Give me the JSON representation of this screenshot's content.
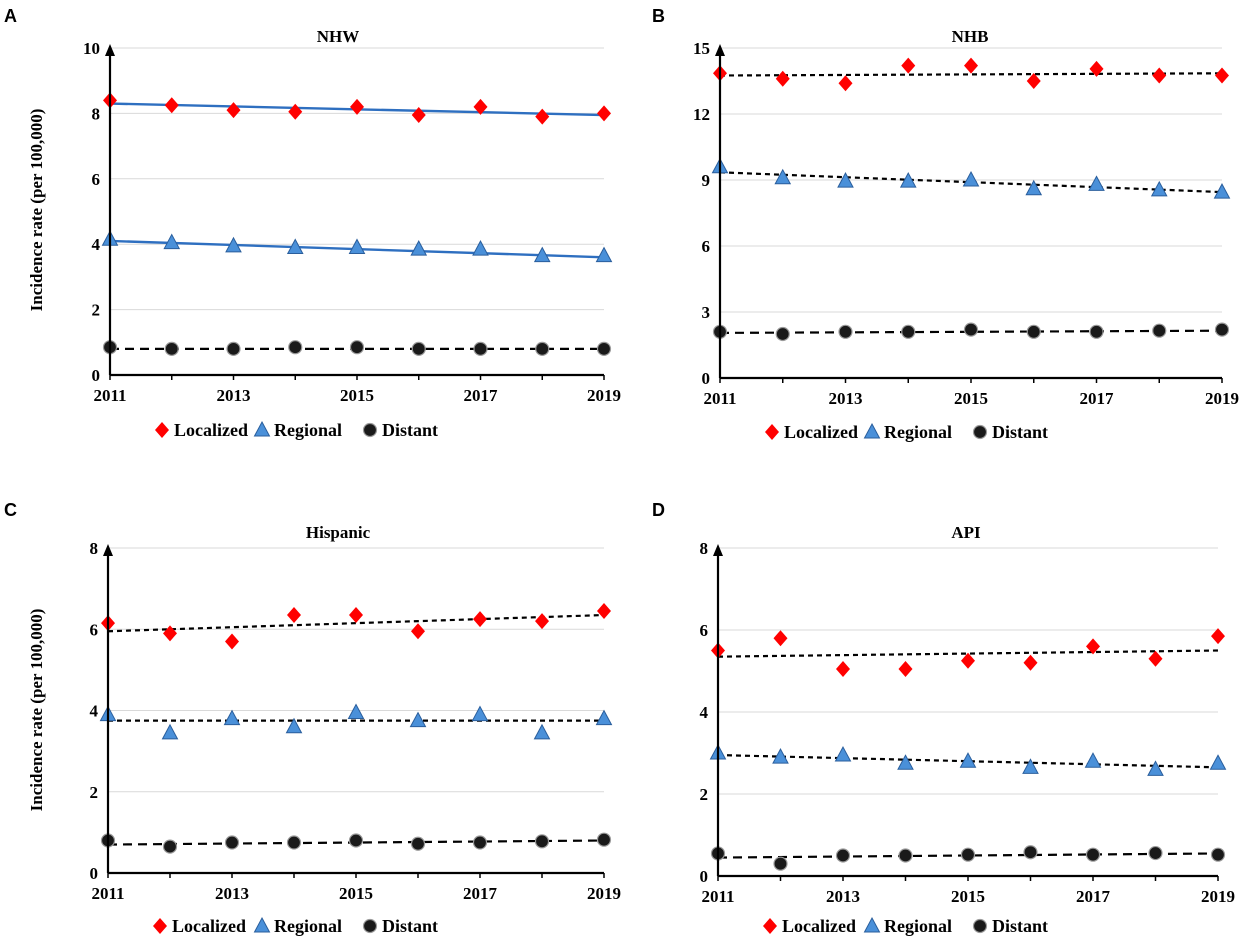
{
  "chart_data": [
    {
      "panel": "A",
      "type": "scatter",
      "title": "NHW",
      "ylabel": "Incidence rate (per 100,000)",
      "xlabel": "",
      "ylim": [
        0,
        10
      ],
      "yticks": [
        0,
        2,
        4,
        6,
        8,
        10
      ],
      "xlim": [
        2011,
        2019
      ],
      "xticks": [
        2011,
        2013,
        2015,
        2017,
        2019
      ],
      "x": [
        2011,
        2012,
        2013,
        2014,
        2015,
        2016,
        2017,
        2018,
        2019
      ],
      "series": [
        {
          "name": "Localized",
          "marker": "diamond",
          "color": "#ff0000",
          "values": [
            8.4,
            8.25,
            8.1,
            8.05,
            8.2,
            7.95,
            8.2,
            7.9,
            8.0
          ],
          "trend": {
            "style": "solid",
            "color": "#2e6fc0",
            "start": 8.3,
            "end": 7.95
          }
        },
        {
          "name": "Regional",
          "marker": "triangle",
          "color": "#4a90d9",
          "values": [
            4.15,
            4.05,
            3.95,
            3.9,
            3.9,
            3.85,
            3.85,
            3.65,
            3.65
          ],
          "trend": {
            "style": "solid",
            "color": "#2e6fc0",
            "start": 4.1,
            "end": 3.6
          }
        },
        {
          "name": "Distant",
          "marker": "circle",
          "color": "#1a1a1a",
          "values": [
            0.85,
            0.8,
            0.8,
            0.85,
            0.85,
            0.8,
            0.8,
            0.8,
            0.8
          ],
          "trend": {
            "style": "dashed",
            "color": "#000000",
            "start": 0.8,
            "end": 0.8
          }
        }
      ],
      "legend": [
        "Localized",
        "Regional",
        "Distant"
      ]
    },
    {
      "panel": "B",
      "type": "scatter",
      "title": "NHB",
      "ylabel": "",
      "xlabel": "",
      "ylim": [
        0,
        15
      ],
      "yticks": [
        0,
        3,
        6,
        9,
        12,
        15
      ],
      "xlim": [
        2011,
        2019
      ],
      "xticks": [
        2011,
        2013,
        2015,
        2017,
        2019
      ],
      "x": [
        2011,
        2012,
        2013,
        2014,
        2015,
        2016,
        2017,
        2018,
        2019
      ],
      "series": [
        {
          "name": "Localized",
          "marker": "diamond",
          "color": "#ff0000",
          "values": [
            13.85,
            13.6,
            13.4,
            14.2,
            14.2,
            13.5,
            14.05,
            13.75,
            13.75
          ],
          "trend": {
            "style": "dashed",
            "color": "#000000",
            "start": 13.75,
            "end": 13.85
          }
        },
        {
          "name": "Regional",
          "marker": "triangle",
          "color": "#4a90d9",
          "values": [
            9.6,
            9.1,
            8.95,
            8.95,
            9.0,
            8.6,
            8.8,
            8.55,
            8.45
          ],
          "trend": {
            "style": "dashed",
            "color": "#000000",
            "start": 9.35,
            "end": 8.45
          }
        },
        {
          "name": "Distant",
          "marker": "circle",
          "color": "#1a1a1a",
          "values": [
            2.1,
            2.0,
            2.1,
            2.1,
            2.2,
            2.1,
            2.1,
            2.15,
            2.2
          ],
          "trend": {
            "style": "dashed",
            "color": "#000000",
            "start": 2.05,
            "end": 2.15
          }
        }
      ],
      "legend": [
        "Localized",
        "Regional",
        "Distant"
      ]
    },
    {
      "panel": "C",
      "type": "scatter",
      "title": "Hispanic",
      "ylabel": "Incidence rate (per 100,000)",
      "xlabel": "",
      "ylim": [
        0,
        8
      ],
      "yticks": [
        0,
        2,
        4,
        6,
        8
      ],
      "xlim": [
        2011,
        2019
      ],
      "xticks": [
        2011,
        2013,
        2015,
        2017,
        2019
      ],
      "x": [
        2011,
        2012,
        2013,
        2014,
        2015,
        2016,
        2017,
        2018,
        2019
      ],
      "series": [
        {
          "name": "Localized",
          "marker": "diamond",
          "color": "#ff0000",
          "values": [
            6.15,
            5.9,
            5.7,
            6.35,
            6.35,
            5.95,
            6.25,
            6.2,
            6.45
          ],
          "trend": {
            "style": "dashed",
            "color": "#000000",
            "start": 5.95,
            "end": 6.35
          }
        },
        {
          "name": "Regional",
          "marker": "triangle",
          "color": "#4a90d9",
          "values": [
            3.9,
            3.45,
            3.8,
            3.6,
            3.95,
            3.75,
            3.9,
            3.45,
            3.8
          ],
          "trend": {
            "style": "dashed",
            "color": "#000000",
            "start": 3.75,
            "end": 3.75
          }
        },
        {
          "name": "Distant",
          "marker": "circle",
          "color": "#1a1a1a",
          "values": [
            0.8,
            0.65,
            0.75,
            0.75,
            0.8,
            0.72,
            0.75,
            0.78,
            0.82
          ],
          "trend": {
            "style": "dashed",
            "color": "#000000",
            "start": 0.7,
            "end": 0.8
          }
        }
      ],
      "legend": [
        "Localized",
        "Regional",
        "Distant"
      ]
    },
    {
      "panel": "D",
      "type": "scatter",
      "title": "API",
      "ylabel": "",
      "xlabel": "",
      "ylim": [
        0,
        8
      ],
      "yticks": [
        0,
        2,
        4,
        6,
        8
      ],
      "xlim": [
        2011,
        2019
      ],
      "xticks": [
        2011,
        2013,
        2015,
        2017,
        2019
      ],
      "x": [
        2011,
        2012,
        2013,
        2014,
        2015,
        2016,
        2017,
        2018,
        2019
      ],
      "series": [
        {
          "name": "Localized",
          "marker": "diamond",
          "color": "#ff0000",
          "values": [
            5.5,
            5.8,
            5.05,
            5.05,
            5.25,
            5.2,
            5.6,
            5.3,
            5.85
          ],
          "trend": {
            "style": "dashed",
            "color": "#000000",
            "start": 5.35,
            "end": 5.5
          }
        },
        {
          "name": "Regional",
          "marker": "triangle",
          "color": "#4a90d9",
          "values": [
            3.0,
            2.9,
            2.95,
            2.75,
            2.8,
            2.65,
            2.8,
            2.6,
            2.75
          ],
          "trend": {
            "style": "dashed",
            "color": "#000000",
            "start": 2.95,
            "end": 2.65
          }
        },
        {
          "name": "Distant",
          "marker": "circle",
          "color": "#1a1a1a",
          "values": [
            0.55,
            0.3,
            0.5,
            0.5,
            0.52,
            0.58,
            0.52,
            0.56,
            0.52
          ],
          "trend": {
            "style": "dashed",
            "color": "#000000",
            "start": 0.45,
            "end": 0.55
          }
        }
      ],
      "legend": [
        "Localized",
        "Regional",
        "Distant"
      ]
    }
  ]
}
